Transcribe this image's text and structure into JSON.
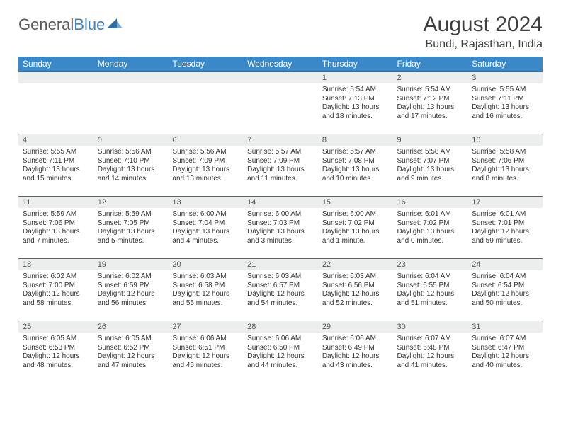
{
  "logo": {
    "text1": "General",
    "text2": "Blue"
  },
  "title": "August 2024",
  "location": "Bundi, Rajasthan, India",
  "dayHeaders": [
    "Sunday",
    "Monday",
    "Tuesday",
    "Wednesday",
    "Thursday",
    "Friday",
    "Saturday"
  ],
  "colors": {
    "header_bg": "#3b88c9",
    "header_border": "#2f6fa8",
    "daynum_bg": "#eceeee"
  },
  "weeks": [
    [
      {
        "n": "",
        "sr": "",
        "ss": "",
        "dl": ""
      },
      {
        "n": "",
        "sr": "",
        "ss": "",
        "dl": ""
      },
      {
        "n": "",
        "sr": "",
        "ss": "",
        "dl": ""
      },
      {
        "n": "",
        "sr": "",
        "ss": "",
        "dl": ""
      },
      {
        "n": "1",
        "sr": "Sunrise: 5:54 AM",
        "ss": "Sunset: 7:13 PM",
        "dl": "Daylight: 13 hours and 18 minutes."
      },
      {
        "n": "2",
        "sr": "Sunrise: 5:54 AM",
        "ss": "Sunset: 7:12 PM",
        "dl": "Daylight: 13 hours and 17 minutes."
      },
      {
        "n": "3",
        "sr": "Sunrise: 5:55 AM",
        "ss": "Sunset: 7:11 PM",
        "dl": "Daylight: 13 hours and 16 minutes."
      }
    ],
    [
      {
        "n": "4",
        "sr": "Sunrise: 5:55 AM",
        "ss": "Sunset: 7:11 PM",
        "dl": "Daylight: 13 hours and 15 minutes."
      },
      {
        "n": "5",
        "sr": "Sunrise: 5:56 AM",
        "ss": "Sunset: 7:10 PM",
        "dl": "Daylight: 13 hours and 14 minutes."
      },
      {
        "n": "6",
        "sr": "Sunrise: 5:56 AM",
        "ss": "Sunset: 7:09 PM",
        "dl": "Daylight: 13 hours and 13 minutes."
      },
      {
        "n": "7",
        "sr": "Sunrise: 5:57 AM",
        "ss": "Sunset: 7:09 PM",
        "dl": "Daylight: 13 hours and 11 minutes."
      },
      {
        "n": "8",
        "sr": "Sunrise: 5:57 AM",
        "ss": "Sunset: 7:08 PM",
        "dl": "Daylight: 13 hours and 10 minutes."
      },
      {
        "n": "9",
        "sr": "Sunrise: 5:58 AM",
        "ss": "Sunset: 7:07 PM",
        "dl": "Daylight: 13 hours and 9 minutes."
      },
      {
        "n": "10",
        "sr": "Sunrise: 5:58 AM",
        "ss": "Sunset: 7:06 PM",
        "dl": "Daylight: 13 hours and 8 minutes."
      }
    ],
    [
      {
        "n": "11",
        "sr": "Sunrise: 5:59 AM",
        "ss": "Sunset: 7:06 PM",
        "dl": "Daylight: 13 hours and 7 minutes."
      },
      {
        "n": "12",
        "sr": "Sunrise: 5:59 AM",
        "ss": "Sunset: 7:05 PM",
        "dl": "Daylight: 13 hours and 5 minutes."
      },
      {
        "n": "13",
        "sr": "Sunrise: 6:00 AM",
        "ss": "Sunset: 7:04 PM",
        "dl": "Daylight: 13 hours and 4 minutes."
      },
      {
        "n": "14",
        "sr": "Sunrise: 6:00 AM",
        "ss": "Sunset: 7:03 PM",
        "dl": "Daylight: 13 hours and 3 minutes."
      },
      {
        "n": "15",
        "sr": "Sunrise: 6:00 AM",
        "ss": "Sunset: 7:02 PM",
        "dl": "Daylight: 13 hours and 1 minute."
      },
      {
        "n": "16",
        "sr": "Sunrise: 6:01 AM",
        "ss": "Sunset: 7:02 PM",
        "dl": "Daylight: 13 hours and 0 minutes."
      },
      {
        "n": "17",
        "sr": "Sunrise: 6:01 AM",
        "ss": "Sunset: 7:01 PM",
        "dl": "Daylight: 12 hours and 59 minutes."
      }
    ],
    [
      {
        "n": "18",
        "sr": "Sunrise: 6:02 AM",
        "ss": "Sunset: 7:00 PM",
        "dl": "Daylight: 12 hours and 58 minutes."
      },
      {
        "n": "19",
        "sr": "Sunrise: 6:02 AM",
        "ss": "Sunset: 6:59 PM",
        "dl": "Daylight: 12 hours and 56 minutes."
      },
      {
        "n": "20",
        "sr": "Sunrise: 6:03 AM",
        "ss": "Sunset: 6:58 PM",
        "dl": "Daylight: 12 hours and 55 minutes."
      },
      {
        "n": "21",
        "sr": "Sunrise: 6:03 AM",
        "ss": "Sunset: 6:57 PM",
        "dl": "Daylight: 12 hours and 54 minutes."
      },
      {
        "n": "22",
        "sr": "Sunrise: 6:03 AM",
        "ss": "Sunset: 6:56 PM",
        "dl": "Daylight: 12 hours and 52 minutes."
      },
      {
        "n": "23",
        "sr": "Sunrise: 6:04 AM",
        "ss": "Sunset: 6:55 PM",
        "dl": "Daylight: 12 hours and 51 minutes."
      },
      {
        "n": "24",
        "sr": "Sunrise: 6:04 AM",
        "ss": "Sunset: 6:54 PM",
        "dl": "Daylight: 12 hours and 50 minutes."
      }
    ],
    [
      {
        "n": "25",
        "sr": "Sunrise: 6:05 AM",
        "ss": "Sunset: 6:53 PM",
        "dl": "Daylight: 12 hours and 48 minutes."
      },
      {
        "n": "26",
        "sr": "Sunrise: 6:05 AM",
        "ss": "Sunset: 6:52 PM",
        "dl": "Daylight: 12 hours and 47 minutes."
      },
      {
        "n": "27",
        "sr": "Sunrise: 6:06 AM",
        "ss": "Sunset: 6:51 PM",
        "dl": "Daylight: 12 hours and 45 minutes."
      },
      {
        "n": "28",
        "sr": "Sunrise: 6:06 AM",
        "ss": "Sunset: 6:50 PM",
        "dl": "Daylight: 12 hours and 44 minutes."
      },
      {
        "n": "29",
        "sr": "Sunrise: 6:06 AM",
        "ss": "Sunset: 6:49 PM",
        "dl": "Daylight: 12 hours and 43 minutes."
      },
      {
        "n": "30",
        "sr": "Sunrise: 6:07 AM",
        "ss": "Sunset: 6:48 PM",
        "dl": "Daylight: 12 hours and 41 minutes."
      },
      {
        "n": "31",
        "sr": "Sunrise: 6:07 AM",
        "ss": "Sunset: 6:47 PM",
        "dl": "Daylight: 12 hours and 40 minutes."
      }
    ]
  ]
}
